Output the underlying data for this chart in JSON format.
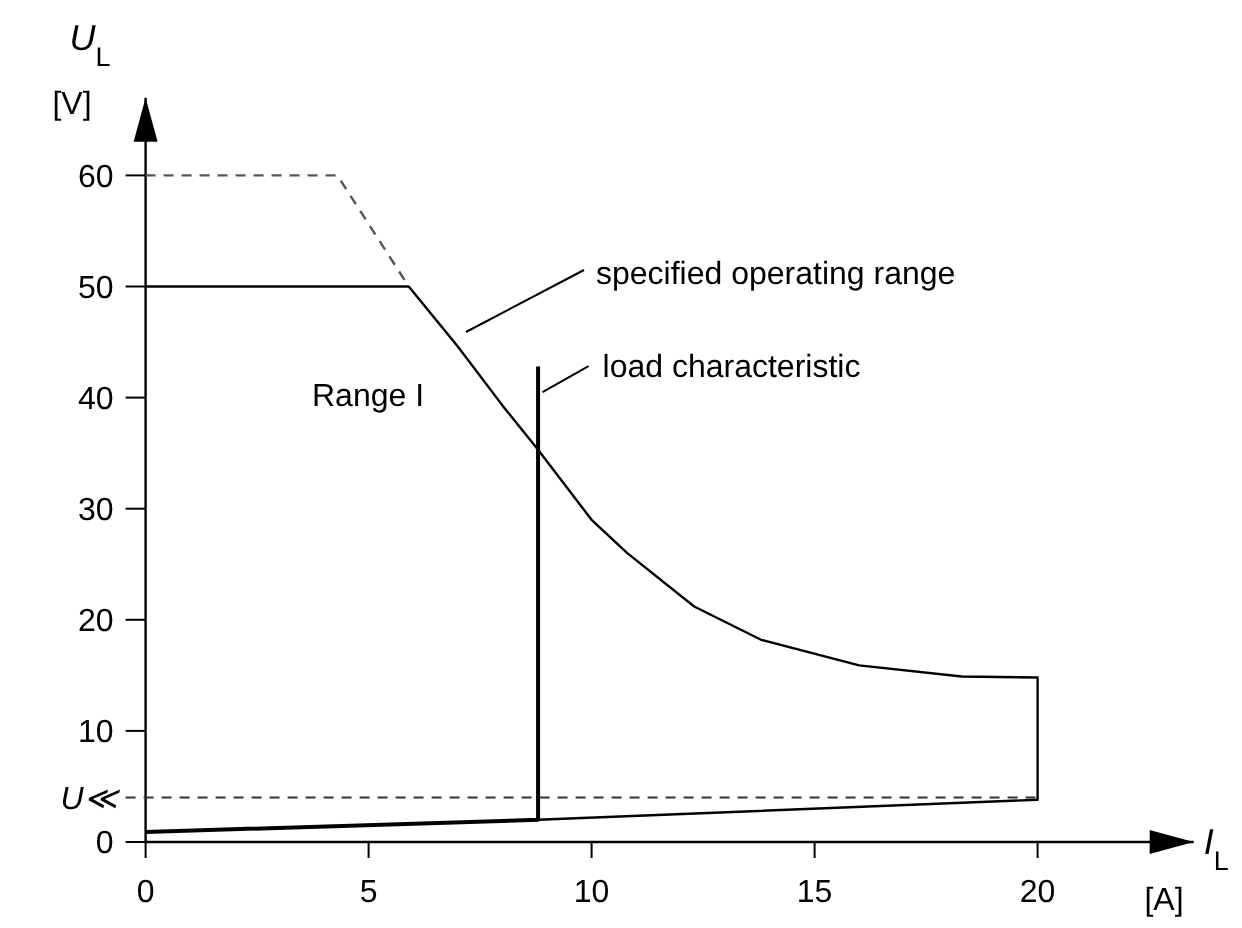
{
  "chart_data": {
    "type": "line",
    "xlabel": "I$_{L}$",
    "ylabel": "U$_{L}$",
    "xlim": [
      0,
      23.5
    ],
    "ylim": [
      0,
      67
    ],
    "xticks": [
      0,
      5,
      10,
      15,
      20
    ],
    "yticks": [
      0,
      10,
      20,
      30,
      40,
      50,
      60
    ],
    "series": [
      {
        "color": "#000000",
        "x": [
          0,
          5.9,
          7,
          8,
          8.8,
          10,
          10.8,
          12.3,
          13.8,
          16,
          18.3,
          20,
          20,
          8.8
        ],
        "values": [
          50,
          50,
          44.6,
          39.3,
          35.3,
          29,
          26,
          21.2,
          18.2,
          15.9,
          14.9,
          14.8,
          3.8,
          2
        ]
      },
      {
        "color": "#555555",
        "line_style": "dashed",
        "x": [
          0,
          4.3,
          5.9
        ],
        "values": [
          60,
          60,
          50
        ]
      },
      {
        "color": "#000000",
        "x": [
          0,
          8.8,
          8.8
        ],
        "values": [
          0.9,
          2,
          42.8
        ]
      }
    ],
    "ref_lines": [
      {
        "axis": "y",
        "value": 4,
        "label": "U≪",
        "color": "#333333",
        "line_style": "dashed"
      }
    ],
    "annotations": [
      "Range I",
      "[V]",
      "[A]",
      "specified operating range",
      {
        "text": "load characteristic",
        "x": 8.9,
        "y": 40.5
      }
    ]
  }
}
